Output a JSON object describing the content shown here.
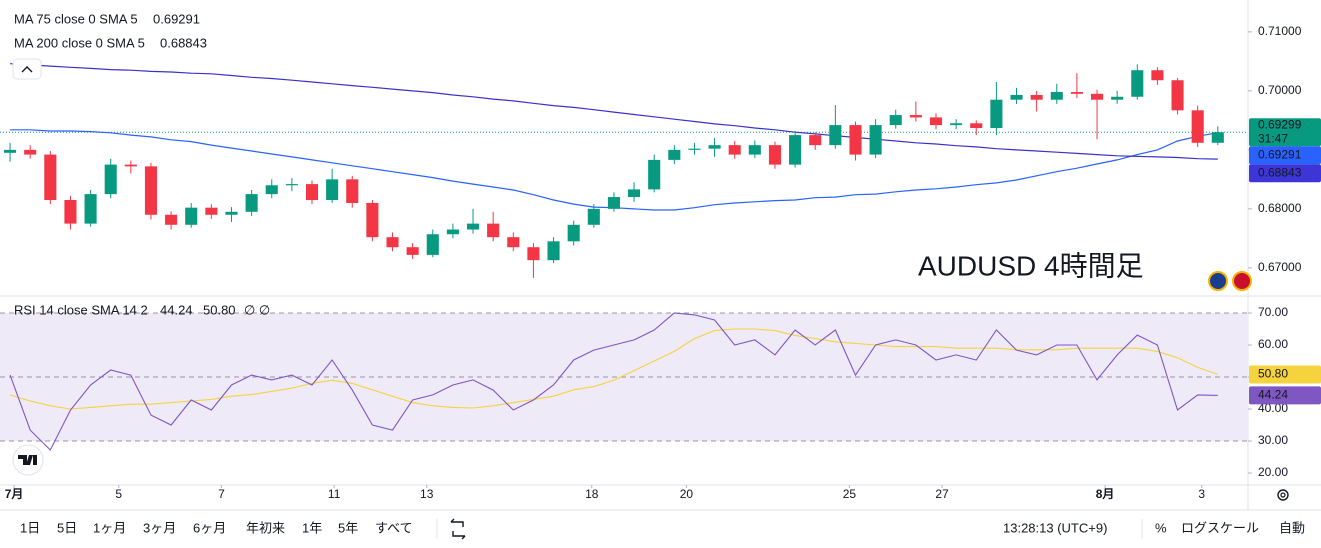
{
  "chart_data": [
    {
      "type": "candlestick",
      "annotation": "AUDUSD 4時間足",
      "xlim": [
        -0.5,
        61.5
      ],
      "ylim": [
        0.6654,
        0.7154
      ],
      "yticks": [
        {
          "value": 0.71,
          "label": "0.71000"
        },
        {
          "value": 0.7,
          "label": "0.70000"
        },
        {
          "value": 0.69,
          "label": "0.69000"
        },
        {
          "value": 0.68,
          "label": "0.68000"
        },
        {
          "value": 0.67,
          "label": "0.67000"
        }
      ],
      "grid": false,
      "up_color": "#089981",
      "down_color": "#f23645",
      "countdown": "31:47",
      "candles": [
        [
          0.6895,
          0.6912,
          0.688,
          0.69
        ],
        [
          0.69,
          0.6908,
          0.6885,
          0.6892
        ],
        [
          0.6892,
          0.6898,
          0.6808,
          0.6815
        ],
        [
          0.6815,
          0.6822,
          0.6765,
          0.6775
        ],
        [
          0.6775,
          0.6832,
          0.677,
          0.6825
        ],
        [
          0.6825,
          0.6885,
          0.6818,
          0.6875
        ],
        [
          0.6875,
          0.6882,
          0.686,
          0.6872
        ],
        [
          0.6872,
          0.6878,
          0.6782,
          0.679
        ],
        [
          0.679,
          0.6796,
          0.6765,
          0.6773
        ],
        [
          0.6773,
          0.681,
          0.6768,
          0.6802
        ],
        [
          0.6802,
          0.6808,
          0.6783,
          0.679
        ],
        [
          0.679,
          0.6803,
          0.6778,
          0.6795
        ],
        [
          0.6795,
          0.6832,
          0.6788,
          0.6825
        ],
        [
          0.6825,
          0.685,
          0.6818,
          0.684
        ],
        [
          0.684,
          0.6852,
          0.683,
          0.6842
        ],
        [
          0.6842,
          0.6848,
          0.6808,
          0.6815
        ],
        [
          0.6815,
          0.6868,
          0.681,
          0.685
        ],
        [
          0.685,
          0.6856,
          0.6802,
          0.681
        ],
        [
          0.681,
          0.6815,
          0.6745,
          0.6752
        ],
        [
          0.6752,
          0.676,
          0.6728,
          0.6735
        ],
        [
          0.6735,
          0.6742,
          0.6715,
          0.6722
        ],
        [
          0.6722,
          0.6765,
          0.6718,
          0.6757
        ],
        [
          0.6757,
          0.6775,
          0.675,
          0.6765
        ],
        [
          0.6765,
          0.68,
          0.6758,
          0.6775
        ],
        [
          0.6775,
          0.6795,
          0.6745,
          0.6752
        ],
        [
          0.6752,
          0.676,
          0.6728,
          0.6735
        ],
        [
          0.6735,
          0.6742,
          0.6683,
          0.6713
        ],
        [
          0.6713,
          0.6752,
          0.6708,
          0.6745
        ],
        [
          0.6745,
          0.678,
          0.6738,
          0.6773
        ],
        [
          0.6773,
          0.6808,
          0.6768,
          0.68
        ],
        [
          0.68,
          0.6828,
          0.6795,
          0.682
        ],
        [
          0.682,
          0.6845,
          0.6812,
          0.6833
        ],
        [
          0.6833,
          0.6892,
          0.6828,
          0.6883
        ],
        [
          0.6883,
          0.6908,
          0.6876,
          0.69
        ],
        [
          0.69,
          0.6912,
          0.6892,
          0.6902
        ],
        [
          0.6902,
          0.692,
          0.6888,
          0.6908
        ],
        [
          0.6908,
          0.6915,
          0.6885,
          0.6892
        ],
        [
          0.6892,
          0.6916,
          0.6886,
          0.6908
        ],
        [
          0.6908,
          0.6914,
          0.6868,
          0.6875
        ],
        [
          0.6875,
          0.6932,
          0.687,
          0.6925
        ],
        [
          0.6925,
          0.693,
          0.69,
          0.6908
        ],
        [
          0.6908,
          0.6976,
          0.6902,
          0.6942
        ],
        [
          0.6942,
          0.6948,
          0.6882,
          0.6892
        ],
        [
          0.6892,
          0.6952,
          0.6886,
          0.6942
        ],
        [
          0.6942,
          0.6968,
          0.6936,
          0.6959
        ],
        [
          0.6959,
          0.6982,
          0.6948,
          0.6955
        ],
        [
          0.6955,
          0.6962,
          0.6935,
          0.6942
        ],
        [
          0.6942,
          0.6952,
          0.6935,
          0.6945
        ],
        [
          0.6945,
          0.695,
          0.6925,
          0.6937
        ],
        [
          0.6937,
          0.7015,
          0.6925,
          0.6985
        ],
        [
          0.6985,
          0.7005,
          0.6978,
          0.6993
        ],
        [
          0.6993,
          0.7,
          0.6965,
          0.6985
        ],
        [
          0.6985,
          0.7012,
          0.6978,
          0.6998
        ],
        [
          0.6998,
          0.703,
          0.6988,
          0.6995
        ],
        [
          0.6995,
          0.7002,
          0.6918,
          0.6985
        ],
        [
          0.6985,
          0.7,
          0.6978,
          0.699
        ],
        [
          0.699,
          0.7045,
          0.6985,
          0.7035
        ],
        [
          0.7035,
          0.704,
          0.701,
          0.7018
        ],
        [
          0.7018,
          0.7022,
          0.696,
          0.6967
        ],
        [
          0.6967,
          0.6975,
          0.6905,
          0.6912
        ],
        [
          0.6912,
          0.694,
          0.6908,
          0.69299
        ]
      ],
      "overlays": [
        {
          "name": "MA 75 close 0 SMA 5",
          "color": "#2962ff",
          "label_color": "#2962ff",
          "values": [
            0.6934,
            0.6934,
            0.6932,
            0.6932,
            0.6931,
            0.6929,
            0.6925,
            0.6922,
            0.6917,
            0.6914,
            0.6908,
            0.6903,
            0.6898,
            0.6893,
            0.6888,
            0.6883,
            0.6878,
            0.6873,
            0.6868,
            0.6863,
            0.6858,
            0.6853,
            0.6847,
            0.6842,
            0.6837,
            0.6832,
            0.6824,
            0.6815,
            0.6808,
            0.6803,
            0.6802,
            0.68,
            0.6798,
            0.6798,
            0.6802,
            0.6807,
            0.681,
            0.6812,
            0.6814,
            0.6815,
            0.6819,
            0.682,
            0.6824,
            0.6825,
            0.6829,
            0.6832,
            0.6834,
            0.6837,
            0.6841,
            0.6844,
            0.6849,
            0.6856,
            0.6863,
            0.6869,
            0.6876,
            0.6883,
            0.6892,
            0.69,
            0.6915,
            0.6923,
            0.69291
          ]
        },
        {
          "name": "MA 200 close 0 SMA 5",
          "color": "#3a32c8",
          "label_color": "#3d35d6",
          "values": [
            0.7046,
            0.7044,
            0.7042,
            0.704,
            0.7038,
            0.7036,
            0.7035,
            0.7033,
            0.7032,
            0.703,
            0.7029,
            0.7026,
            0.7023,
            0.7021,
            0.7018,
            0.7015,
            0.7012,
            0.7009,
            0.7006,
            0.7003,
            0.7,
            0.6997,
            0.6993,
            0.699,
            0.6986,
            0.6983,
            0.6979,
            0.6975,
            0.6972,
            0.6968,
            0.6964,
            0.696,
            0.6956,
            0.6952,
            0.6948,
            0.6944,
            0.6941,
            0.6937,
            0.6934,
            0.693,
            0.6927,
            0.6924,
            0.6921,
            0.6918,
            0.6915,
            0.6912,
            0.691,
            0.6907,
            0.6905,
            0.6902,
            0.69,
            0.6898,
            0.6896,
            0.6894,
            0.6892,
            0.689,
            0.6889,
            0.6888,
            0.6887,
            0.6885,
            0.68843
          ]
        }
      ]
    },
    {
      "type": "line",
      "legend_title": "RSI 14 close SMA 14 2",
      "legend_extra": "∅ ∅",
      "xlim": [
        -0.5,
        61.5
      ],
      "ylim": [
        16,
        75
      ],
      "yticks": [
        {
          "value": 70,
          "label": "70.00"
        },
        {
          "value": 60,
          "label": "60.00"
        },
        {
          "value": 50,
          "label": "50.00"
        },
        {
          "value": 40,
          "label": "40.00"
        },
        {
          "value": 30,
          "label": "30.00"
        },
        {
          "value": 20,
          "label": "20.00"
        }
      ],
      "band": [
        30,
        70
      ],
      "band_color": "#efeaf8",
      "dashed_levels": [
        70,
        50,
        30
      ],
      "xticks": [
        {
          "value": 0.2,
          "label": "7月"
        },
        {
          "value": 5.4,
          "label": "5"
        },
        {
          "value": 10.5,
          "label": "7"
        },
        {
          "value": 16.1,
          "label": "11"
        },
        {
          "value": 20.7,
          "label": "13"
        },
        {
          "value": 28.9,
          "label": "18"
        },
        {
          "value": 33.6,
          "label": "20"
        },
        {
          "value": 41.7,
          "label": "25"
        },
        {
          "value": 46.3,
          "label": "27"
        },
        {
          "value": 54.4,
          "label": "8月"
        },
        {
          "value": 59.2,
          "label": "3"
        }
      ],
      "series": [
        {
          "color": "#7e57c2",
          "values": [
            50.6,
            33.4,
            27.2,
            39.7,
            47.5,
            52.2,
            50.6,
            38.1,
            35.0,
            42.8,
            39.7,
            47.5,
            50.6,
            49.1,
            50.6,
            47.5,
            55.3,
            45.9,
            35.0,
            33.4,
            42.8,
            44.4,
            47.5,
            49.1,
            45.9,
            39.7,
            42.8,
            47.5,
            55.3,
            58.4,
            60.0,
            61.6,
            64.7,
            70.0,
            69.4,
            67.8,
            60.0,
            61.6,
            56.9,
            64.7,
            60.0,
            64.7,
            50.6,
            60.0,
            61.6,
            60.0,
            55.3,
            56.9,
            55.3,
            64.7,
            58.4,
            56.9,
            60.0,
            60.0,
            49.1,
            56.9,
            63.1,
            60.0,
            39.7,
            44.4,
            44.24
          ]
        },
        {
          "color": "#f5d33f",
          "last_label": "50.80",
          "values": [
            44.4,
            42.5,
            41,
            40,
            40.5,
            41,
            41.5,
            41.5,
            42,
            42.5,
            43,
            44,
            44.5,
            45.5,
            46.5,
            48,
            49,
            48,
            46,
            44,
            42,
            41,
            40.5,
            40.3,
            41,
            42,
            43,
            44,
            46,
            47,
            49,
            52,
            55,
            58,
            62,
            64.5,
            65,
            65,
            64.5,
            63,
            62,
            61,
            60.5,
            60,
            59.5,
            59.5,
            59.5,
            59,
            59,
            59,
            58.5,
            58.5,
            58.5,
            59,
            59,
            59,
            59,
            58,
            56,
            53,
            50.8
          ]
        }
      ]
    }
  ],
  "toolbar": {
    "ranges": [
      "1日",
      "5日",
      "1ヶ月",
      "3ヶ月",
      "6ヶ月",
      "年初来",
      "1年",
      "5年",
      "すべて"
    ],
    "time": "13:28:13 (UTC+9)",
    "percent": "%",
    "log": "ログスケール",
    "auto": "自動"
  }
}
